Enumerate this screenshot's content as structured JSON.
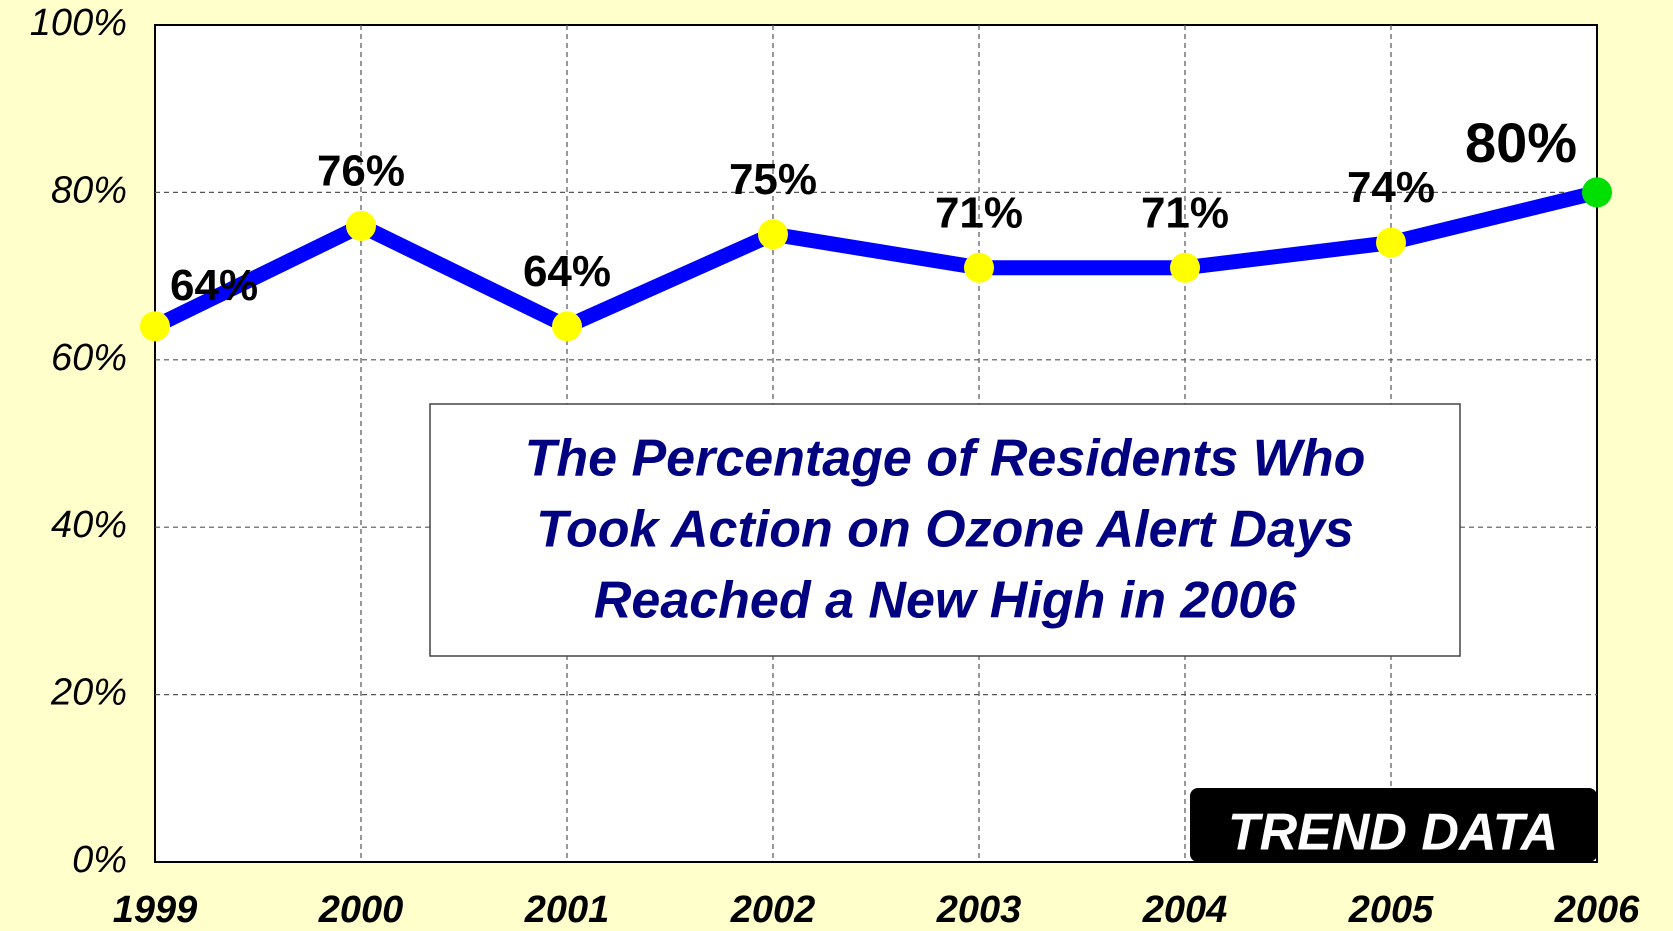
{
  "chart_data": {
    "type": "line",
    "x": [
      1999,
      2000,
      2001,
      2002,
      2003,
      2004,
      2005,
      2006
    ],
    "xlim": [
      1999,
      2006
    ],
    "xticks": [
      1999,
      2000,
      2001,
      2002,
      2003,
      2004,
      2005,
      2006
    ],
    "series": [
      {
        "color": "#0000ff",
        "values": [
          64,
          76,
          64,
          75,
          71,
          71,
          74,
          80
        ],
        "value_labels": [
          "64%",
          "76%",
          "64%",
          "75%",
          "71%",
          "71%",
          "74%",
          "80%"
        ],
        "marker_colors": [
          "#ffff00",
          "#ffff00",
          "#ffff00",
          "#ffff00",
          "#ffff00",
          "#ffff00",
          "#ffff00",
          "#00e000"
        ]
      }
    ],
    "ylim": [
      0,
      100
    ],
    "yticks": [
      {
        "value": 0,
        "label": "0%"
      },
      {
        "value": 20,
        "label": "20%"
      },
      {
        "value": 40,
        "label": "40%"
      },
      {
        "value": 60,
        "label": "60%"
      },
      {
        "value": 80,
        "label": "80%"
      },
      {
        "value": 100,
        "label": "100%"
      }
    ],
    "grid": true,
    "annotation": [
      "The Percentage of Residents Who",
      "Took Action on Ozone Alert Days",
      "Reached a New High in 2006"
    ],
    "badge": "TREND DATA"
  }
}
